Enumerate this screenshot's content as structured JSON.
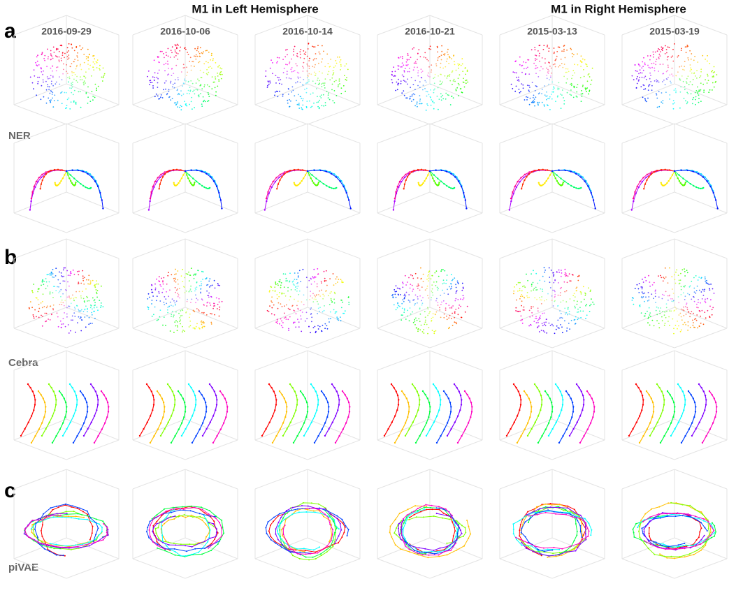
{
  "header": {
    "left_group": "M1 in Left Hemisphere",
    "right_group": "M1 in Right Hemisphere"
  },
  "columns": [
    "2016-09-29",
    "2016-10-06",
    "2016-10-14",
    "2016-10-21",
    "2015-03-13",
    "2015-03-19"
  ],
  "panels": [
    {
      "letter": "a",
      "method": "NER"
    },
    {
      "letter": "b",
      "method": "Cebra"
    },
    {
      "letter": "c",
      "method": "piVAE"
    }
  ]
}
